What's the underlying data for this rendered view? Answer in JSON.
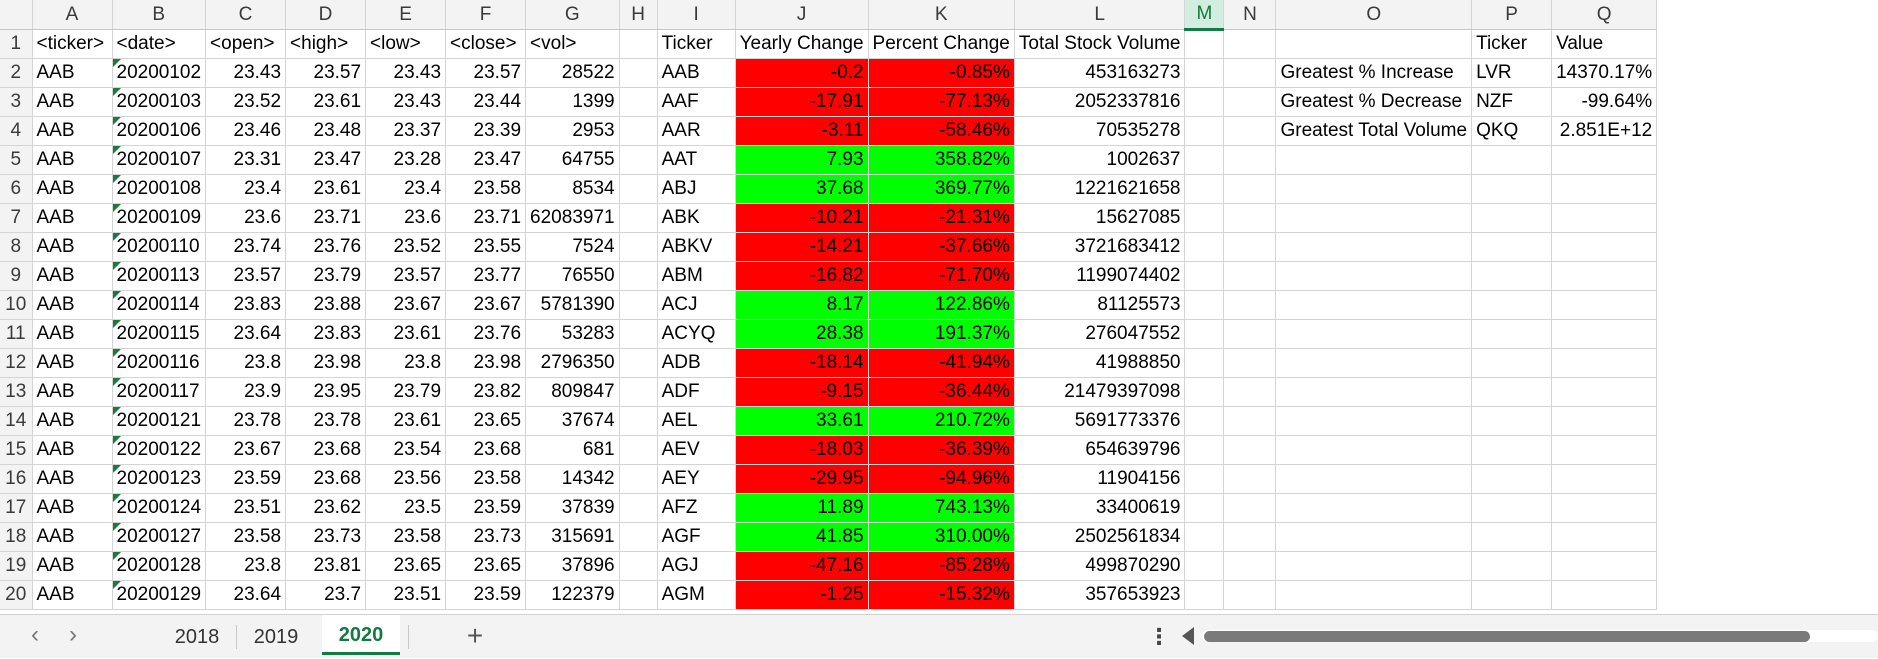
{
  "columns": [
    "",
    "A",
    "B",
    "C",
    "D",
    "E",
    "F",
    "G",
    "H",
    "I",
    "J",
    "K",
    "L",
    "M",
    "N",
    "O",
    "P",
    "Q"
  ],
  "selected_column": "M",
  "rows": [
    {
      "n": "1",
      "a": "<ticker>",
      "b": "<date>",
      "c": "<open>",
      "d": "<high>",
      "e": "<low>",
      "f": "<close>",
      "g": "<vol>",
      "i": "Ticker",
      "j": "Yearly Change",
      "k": "Percent Change",
      "l": "Total Stock Volume",
      "o": "",
      "p": "Ticker",
      "q": "Value"
    },
    {
      "n": "2",
      "a": "AAB",
      "b": "20200102",
      "c": "23.43",
      "d": "23.57",
      "e": "23.43",
      "f": "23.57",
      "g": "28522",
      "i": "AAB",
      "j": "-0.2",
      "k": "-0.85%",
      "l": "453163273",
      "o": "Greatest % Increase",
      "p": "LVR",
      "q": "14370.17%"
    },
    {
      "n": "3",
      "a": "AAB",
      "b": "20200103",
      "c": "23.52",
      "d": "23.61",
      "e": "23.43",
      "f": "23.44",
      "g": "1399",
      "i": "AAF",
      "j": "-17.91",
      "k": "-77.13%",
      "l": "2052337816",
      "o": "Greatest % Decrease",
      "p": "NZF",
      "q": "-99.64%"
    },
    {
      "n": "4",
      "a": "AAB",
      "b": "20200106",
      "c": "23.46",
      "d": "23.48",
      "e": "23.37",
      "f": "23.39",
      "g": "2953",
      "i": "AAR",
      "j": "-3.11",
      "k": "-58.46%",
      "l": "70535278",
      "o": "Greatest Total Volume",
      "p": "QKQ",
      "q": "2.851E+12"
    },
    {
      "n": "5",
      "a": "AAB",
      "b": "20200107",
      "c": "23.31",
      "d": "23.47",
      "e": "23.28",
      "f": "23.47",
      "g": "64755",
      "i": "AAT",
      "j": "7.93",
      "k": "358.82%",
      "l": "1002637",
      "o": "",
      "p": "",
      "q": ""
    },
    {
      "n": "6",
      "a": "AAB",
      "b": "20200108",
      "c": "23.4",
      "d": "23.61",
      "e": "23.4",
      "f": "23.58",
      "g": "8534",
      "i": "ABJ",
      "j": "37.68",
      "k": "369.77%",
      "l": "1221621658",
      "o": "",
      "p": "",
      "q": ""
    },
    {
      "n": "7",
      "a": "AAB",
      "b": "20200109",
      "c": "23.6",
      "d": "23.71",
      "e": "23.6",
      "f": "23.71",
      "g": "62083971",
      "i": "ABK",
      "j": "-10.21",
      "k": "-21.31%",
      "l": "15627085",
      "o": "",
      "p": "",
      "q": ""
    },
    {
      "n": "8",
      "a": "AAB",
      "b": "20200110",
      "c": "23.74",
      "d": "23.76",
      "e": "23.52",
      "f": "23.55",
      "g": "7524",
      "i": "ABKV",
      "j": "-14.21",
      "k": "-37.66%",
      "l": "3721683412",
      "o": "",
      "p": "",
      "q": ""
    },
    {
      "n": "9",
      "a": "AAB",
      "b": "20200113",
      "c": "23.57",
      "d": "23.79",
      "e": "23.57",
      "f": "23.77",
      "g": "76550",
      "i": "ABM",
      "j": "-16.82",
      "k": "-71.70%",
      "l": "1199074402",
      "o": "",
      "p": "",
      "q": ""
    },
    {
      "n": "10",
      "a": "AAB",
      "b": "20200114",
      "c": "23.83",
      "d": "23.88",
      "e": "23.67",
      "f": "23.67",
      "g": "5781390",
      "i": "ACJ",
      "j": "8.17",
      "k": "122.86%",
      "l": "81125573",
      "o": "",
      "p": "",
      "q": ""
    },
    {
      "n": "11",
      "a": "AAB",
      "b": "20200115",
      "c": "23.64",
      "d": "23.83",
      "e": "23.61",
      "f": "23.76",
      "g": "53283",
      "i": "ACYQ",
      "j": "28.38",
      "k": "191.37%",
      "l": "276047552",
      "o": "",
      "p": "",
      "q": ""
    },
    {
      "n": "12",
      "a": "AAB",
      "b": "20200116",
      "c": "23.8",
      "d": "23.98",
      "e": "23.8",
      "f": "23.98",
      "g": "2796350",
      "i": "ADB",
      "j": "-18.14",
      "k": "-41.94%",
      "l": "41988850",
      "o": "",
      "p": "",
      "q": ""
    },
    {
      "n": "13",
      "a": "AAB",
      "b": "20200117",
      "c": "23.9",
      "d": "23.95",
      "e": "23.79",
      "f": "23.82",
      "g": "809847",
      "i": "ADF",
      "j": "-9.15",
      "k": "-36.44%",
      "l": "21479397098",
      "o": "",
      "p": "",
      "q": ""
    },
    {
      "n": "14",
      "a": "AAB",
      "b": "20200121",
      "c": "23.78",
      "d": "23.78",
      "e": "23.61",
      "f": "23.65",
      "g": "37674",
      "i": "AEL",
      "j": "33.61",
      "k": "210.72%",
      "l": "5691773376",
      "o": "",
      "p": "",
      "q": ""
    },
    {
      "n": "15",
      "a": "AAB",
      "b": "20200122",
      "c": "23.67",
      "d": "23.68",
      "e": "23.54",
      "f": "23.68",
      "g": "681",
      "i": "AEV",
      "j": "-18.03",
      "k": "-36.39%",
      "l": "654639796",
      "o": "",
      "p": "",
      "q": ""
    },
    {
      "n": "16",
      "a": "AAB",
      "b": "20200123",
      "c": "23.59",
      "d": "23.68",
      "e": "23.56",
      "f": "23.58",
      "g": "14342",
      "i": "AEY",
      "j": "-29.95",
      "k": "-94.96%",
      "l": "11904156",
      "o": "",
      "p": "",
      "q": ""
    },
    {
      "n": "17",
      "a": "AAB",
      "b": "20200124",
      "c": "23.51",
      "d": "23.62",
      "e": "23.5",
      "f": "23.59",
      "g": "37839",
      "i": "AFZ",
      "j": "11.89",
      "k": "743.13%",
      "l": "33400619",
      "o": "",
      "p": "",
      "q": ""
    },
    {
      "n": "18",
      "a": "AAB",
      "b": "20200127",
      "c": "23.58",
      "d": "23.73",
      "e": "23.58",
      "f": "23.73",
      "g": "315691",
      "i": "AGF",
      "j": "41.85",
      "k": "310.00%",
      "l": "2502561834",
      "o": "",
      "p": "",
      "q": ""
    },
    {
      "n": "19",
      "a": "AAB",
      "b": "20200128",
      "c": "23.8",
      "d": "23.81",
      "e": "23.65",
      "f": "23.65",
      "g": "37896",
      "i": "AGJ",
      "j": "-47.16",
      "k": "-85.28%",
      "l": "499870290",
      "o": "",
      "p": "",
      "q": ""
    },
    {
      "n": "20",
      "a": "AAB",
      "b": "20200129",
      "c": "23.64",
      "d": "23.7",
      "e": "23.51",
      "f": "23.59",
      "g": "122379",
      "i": "AGM",
      "j": "-1.25",
      "k": "-15.32%",
      "l": "357653923",
      "o": "",
      "p": "",
      "q": ""
    }
  ],
  "colors": {
    "negative": "#ff0000",
    "positive": "#00ff00",
    "accent": "#107c41"
  },
  "tabs": {
    "prev_icon": "‹",
    "next_icon": "›",
    "sheets": [
      "2018",
      "2019",
      "2020"
    ],
    "active": "2020",
    "add_label": "+",
    "more_icon": "⋮"
  }
}
